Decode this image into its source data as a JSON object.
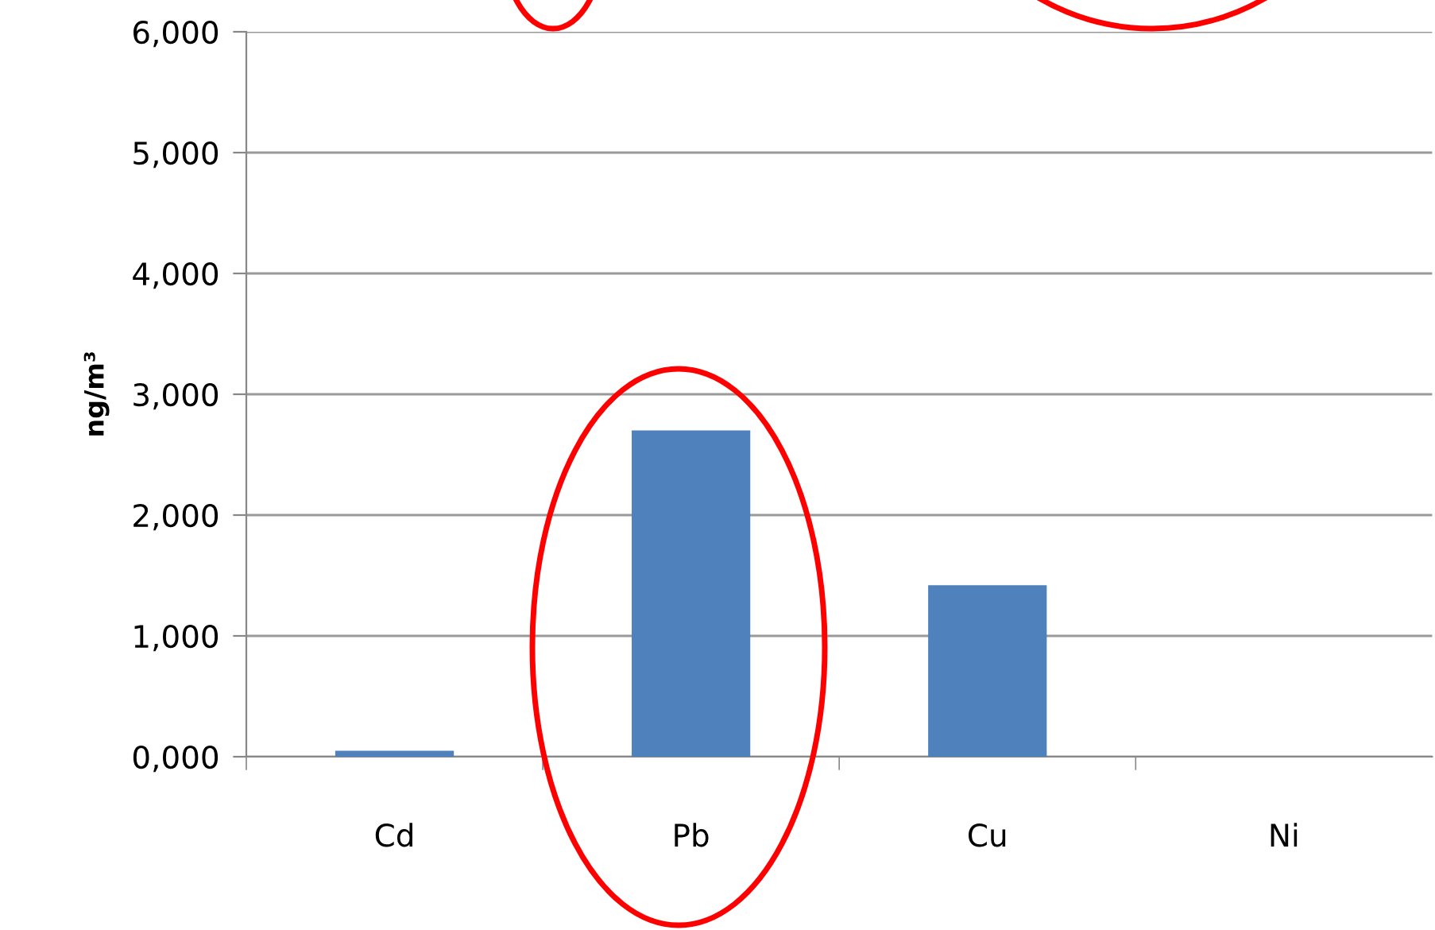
{
  "chart_data": {
    "type": "bar",
    "ylabel": "ng/m³",
    "categories": [
      "Cd",
      "Pb",
      "Cu",
      "Ni"
    ],
    "values": [
      50,
      2700,
      1420,
      0
    ],
    "color": "#4f81bd",
    "ylim": [
      0,
      6000
    ],
    "yticks": [
      {
        "value": 0,
        "label": "0,000"
      },
      {
        "value": 1000,
        "label": "1,000"
      },
      {
        "value": 2000,
        "label": "2,000"
      },
      {
        "value": 3000,
        "label": "3,000"
      },
      {
        "value": 4000,
        "label": "4,000"
      },
      {
        "value": 5000,
        "label": "5,000"
      },
      {
        "value": 6000,
        "label": "6,000"
      }
    ],
    "grid": "y",
    "legend": false
  }
}
